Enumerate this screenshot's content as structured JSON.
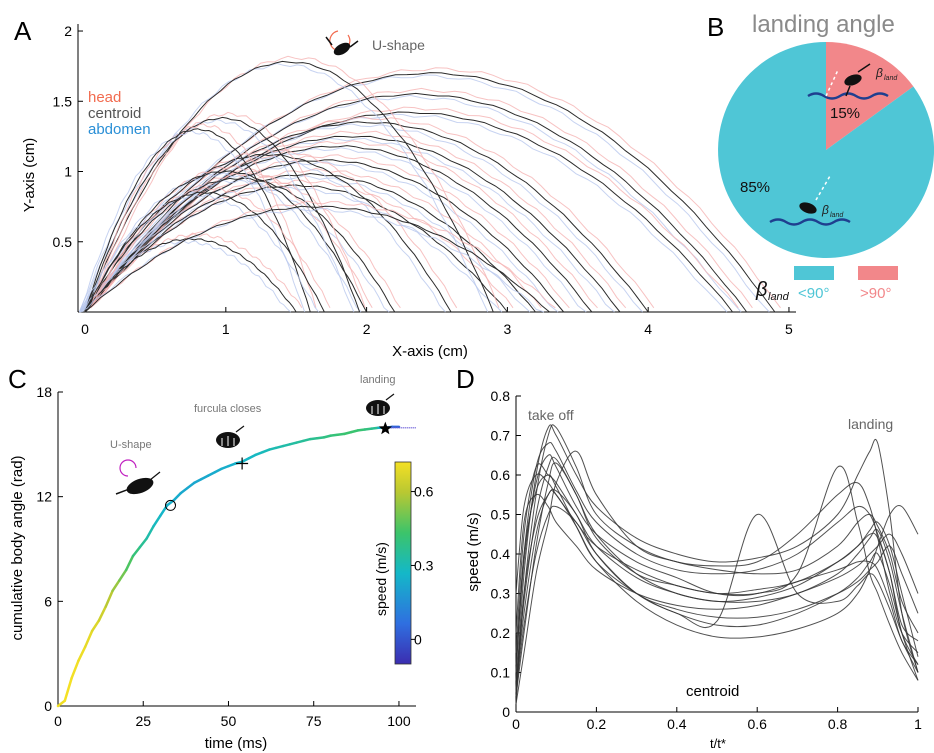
{
  "panels": {
    "A": {
      "letter": "A",
      "title_annotation": "U-shape",
      "xlabel": "X-axis (cm)",
      "ylabel": "Y-axis (cm)",
      "legend": [
        {
          "label": "head",
          "color": "#f26b4f"
        },
        {
          "label": "centroid",
          "color": "#555555"
        },
        {
          "label": "abdomen",
          "color": "#2a8fd6"
        }
      ]
    },
    "B": {
      "letter": "B",
      "title": "landing angle",
      "beta_label": "β",
      "beta_sub": "land",
      "legend": [
        {
          "label": "<90°",
          "color": "#4fc6d6"
        },
        {
          "label": ">90°",
          "color": "#f2878a"
        }
      ]
    },
    "C": {
      "letter": "C",
      "xlabel": "time (ms)",
      "ylabel": "cumulative body angle (rad)",
      "annotations": [
        "U-shape",
        "furcula closes",
        "landing"
      ],
      "colorbar_label": "speed (m/s)",
      "colorbar_ticks": [
        "0.6",
        "0.3",
        "0"
      ]
    },
    "D": {
      "letter": "D",
      "xlabel": "t/t*",
      "ylabel": "speed (m/s)",
      "annotations": [
        "take off",
        "landing",
        "centroid"
      ]
    }
  },
  "chart_data": [
    {
      "type": "line",
      "panel": "A",
      "xlabel": "X-axis (cm)",
      "ylabel": "Y-axis (cm)",
      "xlim": [
        -0.05,
        5.05
      ],
      "ylim": [
        0,
        2.05
      ],
      "xticks": [
        0,
        1,
        2,
        3,
        4,
        5
      ],
      "yticks": [
        0.5,
        1,
        1.5,
        2
      ],
      "series_color": "#2b2b2b",
      "trajectories": [
        {
          "range": [
            0,
            4.9
          ],
          "peak": 1.7
        },
        {
          "range": [
            0,
            4.7
          ],
          "peak": 1.55
        },
        {
          "range": [
            0,
            4.6
          ],
          "peak": 1.42
        },
        {
          "range": [
            0,
            4.0
          ],
          "peak": 1.35
        },
        {
          "range": [
            0,
            3.8
          ],
          "peak": 1.25
        },
        {
          "range": [
            0,
            3.6
          ],
          "peak": 1.18
        },
        {
          "range": [
            0,
            3.4
          ],
          "peak": 1.08
        },
        {
          "range": [
            0,
            3.2
          ],
          "peak": 0.98
        },
        {
          "range": [
            0,
            3.0
          ],
          "peak": 0.9
        },
        {
          "range": [
            0,
            2.9
          ],
          "peak": 1.78
        },
        {
          "range": [
            0,
            2.6
          ],
          "peak": 1.12
        },
        {
          "range": [
            0,
            2.2
          ],
          "peak": 0.95
        },
        {
          "range": [
            0,
            2.0
          ],
          "peak": 1.0
        },
        {
          "range": [
            0,
            1.95
          ],
          "peak": 1.38
        },
        {
          "range": [
            0,
            1.6
          ],
          "peak": 1.3
        },
        {
          "range": [
            0,
            1.5
          ],
          "peak": 0.52
        },
        {
          "range": [
            0,
            1.7
          ],
          "peak": 0.85
        },
        {
          "range": [
            0,
            3.3
          ],
          "peak": 0.75
        }
      ]
    },
    {
      "type": "pie",
      "panel": "B",
      "title": "landing angle",
      "categories": [
        "<90°",
        ">90°"
      ],
      "values": [
        85,
        15
      ],
      "labels": [
        "85%",
        "15%"
      ],
      "colors": [
        "#4fc6d6",
        "#f2878a"
      ]
    },
    {
      "type": "line",
      "panel": "C",
      "xlabel": "time (ms)",
      "ylabel": "cumulative body angle (rad)",
      "xlim": [
        0,
        105
      ],
      "ylim": [
        0,
        18
      ],
      "xticks": [
        0,
        25,
        50,
        75,
        100
      ],
      "yticks": [
        0,
        6,
        12,
        18
      ],
      "x": [
        0,
        2,
        4,
        6,
        8,
        10,
        12,
        14,
        16,
        18,
        20,
        22,
        24,
        26,
        28,
        30,
        32,
        34,
        36,
        38,
        40,
        42,
        44,
        46,
        48,
        50,
        52,
        54,
        56,
        58,
        60,
        62,
        64,
        66,
        68,
        70,
        72,
        74,
        76,
        78,
        80,
        82,
        84,
        86,
        88,
        90,
        92,
        94,
        96,
        98,
        100
      ],
      "y": [
        0,
        0.3,
        1.6,
        2.6,
        3.4,
        4.3,
        4.9,
        5.7,
        6.6,
        7.2,
        7.8,
        8.6,
        9.1,
        9.6,
        10.3,
        10.9,
        11.5,
        11.8,
        12.2,
        12.5,
        12.8,
        13.0,
        13.2,
        13.4,
        13.6,
        13.75,
        13.9,
        14.0,
        14.2,
        14.4,
        14.55,
        14.7,
        14.8,
        14.9,
        15.0,
        15.1,
        15.2,
        15.3,
        15.35,
        15.4,
        15.5,
        15.55,
        15.6,
        15.7,
        15.8,
        15.85,
        15.9,
        15.95,
        15.95,
        16.0,
        16.0
      ],
      "speed": [
        0.7,
        0.72,
        0.72,
        0.71,
        0.7,
        0.68,
        0.66,
        0.62,
        0.58,
        0.53,
        0.48,
        0.43,
        0.38,
        0.34,
        0.3,
        0.27,
        0.25,
        0.24,
        0.23,
        0.22,
        0.22,
        0.22,
        0.23,
        0.23,
        0.24,
        0.24,
        0.25,
        0.26,
        0.27,
        0.28,
        0.29,
        0.3,
        0.31,
        0.32,
        0.33,
        0.34,
        0.35,
        0.36,
        0.37,
        0.38,
        0.4,
        0.41,
        0.42,
        0.43,
        0.42,
        0.41,
        0.38,
        0.35,
        0.15,
        0.05,
        0.03
      ],
      "markers": [
        {
          "label": "U-shape",
          "symbol": "circle",
          "x": 33,
          "y": 11.5
        },
        {
          "label": "furcula closes",
          "symbol": "plus",
          "x": 54,
          "y": 13.9
        },
        {
          "label": "landing",
          "symbol": "star",
          "x": 96,
          "y": 15.9
        }
      ],
      "colorbar": {
        "label": "speed (m/s)",
        "range": [
          -0.1,
          0.72
        ],
        "ticks": [
          0.6,
          0.3,
          0
        ]
      }
    },
    {
      "type": "line",
      "panel": "D",
      "xlabel": "t/t*",
      "ylabel": "speed (m/s)",
      "xlim": [
        0,
        1
      ],
      "ylim": [
        0,
        0.8
      ],
      "xticks": [
        0,
        0.2,
        0.4,
        0.6,
        0.8,
        1
      ],
      "yticks": [
        0,
        0.1,
        0.2,
        0.3,
        0.4,
        0.5,
        0.6,
        0.7,
        0.8
      ],
      "x": [
        0,
        0.02,
        0.05,
        0.08,
        0.1,
        0.15,
        0.2,
        0.3,
        0.4,
        0.5,
        0.6,
        0.7,
        0.8,
        0.85,
        0.88,
        0.9,
        0.93,
        0.96,
        1.0
      ],
      "series": [
        {
          "values": [
            0.05,
            0.35,
            0.6,
            0.72,
            0.7,
            0.6,
            0.52,
            0.44,
            0.4,
            0.38,
            0.39,
            0.42,
            0.5,
            0.6,
            0.66,
            0.68,
            0.5,
            0.25,
            0.1
          ]
        },
        {
          "values": [
            0.1,
            0.4,
            0.62,
            0.68,
            0.66,
            0.56,
            0.48,
            0.4,
            0.36,
            0.35,
            0.36,
            0.4,
            0.48,
            0.52,
            0.5,
            0.45,
            0.35,
            0.2,
            0.12
          ]
        },
        {
          "values": [
            0.02,
            0.3,
            0.55,
            0.7,
            0.72,
            0.62,
            0.5,
            0.42,
            0.38,
            0.37,
            0.38,
            0.45,
            0.55,
            0.58,
            0.52,
            0.44,
            0.3,
            0.2,
            0.15
          ]
        },
        {
          "values": [
            0.08,
            0.28,
            0.5,
            0.62,
            0.64,
            0.55,
            0.45,
            0.35,
            0.3,
            0.28,
            0.28,
            0.3,
            0.35,
            0.4,
            0.44,
            0.46,
            0.38,
            0.25,
            0.1
          ]
        },
        {
          "values": [
            0.15,
            0.45,
            0.62,
            0.6,
            0.58,
            0.5,
            0.42,
            0.34,
            0.3,
            0.28,
            0.29,
            0.32,
            0.38,
            0.42,
            0.45,
            0.44,
            0.35,
            0.22,
            0.18
          ]
        },
        {
          "values": [
            0.05,
            0.22,
            0.4,
            0.5,
            0.52,
            0.48,
            0.4,
            0.3,
            0.25,
            0.22,
            0.22,
            0.25,
            0.3,
            0.34,
            0.38,
            0.4,
            0.32,
            0.2,
            0.08
          ]
        },
        {
          "values": [
            0.3,
            0.52,
            0.6,
            0.58,
            0.55,
            0.48,
            0.42,
            0.36,
            0.32,
            0.3,
            0.3,
            0.33,
            0.36,
            0.38,
            0.38,
            0.36,
            0.28,
            0.18,
            0.12
          ]
        },
        {
          "values": [
            0.02,
            0.15,
            0.35,
            0.48,
            0.58,
            0.66,
            0.55,
            0.42,
            0.38,
            0.36,
            0.35,
            0.36,
            0.42,
            0.48,
            0.5,
            0.47,
            0.4,
            0.28,
            0.2
          ]
        },
        {
          "values": [
            0.1,
            0.38,
            0.58,
            0.65,
            0.62,
            0.52,
            0.45,
            0.38,
            0.34,
            0.3,
            0.3,
            0.35,
            0.62,
            0.48,
            0.35,
            0.3,
            0.22,
            0.15,
            0.08
          ]
        },
        {
          "values": [
            0.05,
            0.3,
            0.48,
            0.55,
            0.56,
            0.5,
            0.4,
            0.3,
            0.26,
            0.24,
            0.24,
            0.26,
            0.3,
            0.33,
            0.36,
            0.38,
            0.42,
            0.35,
            0.25
          ]
        },
        {
          "values": [
            0.12,
            0.4,
            0.56,
            0.6,
            0.57,
            0.47,
            0.38,
            0.3,
            0.25,
            0.23,
            0.5,
            0.3,
            0.28,
            0.32,
            0.35,
            0.33,
            0.26,
            0.18,
            0.1
          ]
        },
        {
          "values": [
            0.04,
            0.2,
            0.42,
            0.58,
            0.63,
            0.55,
            0.44,
            0.35,
            0.32,
            0.3,
            0.31,
            0.33,
            0.38,
            0.42,
            0.46,
            0.48,
            0.42,
            0.3,
            0.14
          ]
        },
        {
          "values": [
            0.2,
            0.48,
            0.55,
            0.52,
            0.48,
            0.42,
            0.36,
            0.3,
            0.27,
            0.26,
            0.27,
            0.3,
            0.34,
            0.37,
            0.4,
            0.42,
            0.45,
            0.4,
            0.3
          ]
        },
        {
          "values": [
            0.06,
            0.25,
            0.45,
            0.55,
            0.55,
            0.47,
            0.38,
            0.28,
            0.22,
            0.19,
            0.19,
            0.21,
            0.25,
            0.3,
            0.36,
            0.42,
            0.5,
            0.52,
            0.45
          ]
        }
      ]
    }
  ]
}
